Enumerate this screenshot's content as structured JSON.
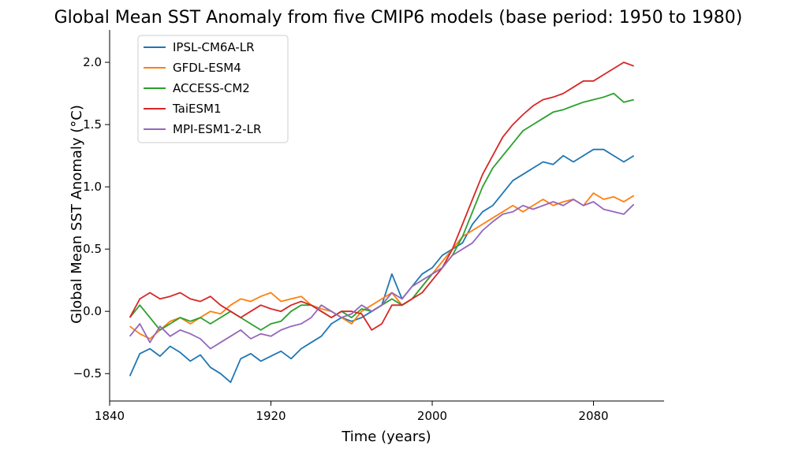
{
  "chart_data": {
    "type": "line",
    "title": "Global Mean SST Anomaly from five CMIP6 models (base period: 1950 to 1980)",
    "xlabel": "Time (years)",
    "ylabel": "Global Mean SST Anomaly (°C)",
    "xlim": [
      1840,
      2115
    ],
    "ylim": [
      -0.72,
      2.26
    ],
    "xticks": [
      1840,
      1920,
      2000,
      2080
    ],
    "xtick_labels": [
      "1840",
      "1920",
      "2000",
      "2080"
    ],
    "yticks": [
      -0.5,
      0.0,
      0.5,
      1.0,
      1.5,
      2.0
    ],
    "ytick_labels": [
      "−0.5",
      "0.0",
      "0.5",
      "1.0",
      "1.5",
      "2.0"
    ],
    "grid": false,
    "legend_position": "top-left",
    "series": [
      {
        "name": "IPSL-CM6A-LR",
        "color": "#1f77b4",
        "x": [
          1850,
          1855,
          1860,
          1865,
          1870,
          1875,
          1880,
          1885,
          1890,
          1895,
          1900,
          1905,
          1910,
          1915,
          1920,
          1925,
          1930,
          1935,
          1940,
          1945,
          1950,
          1955,
          1960,
          1965,
          1970,
          1975,
          1980,
          1985,
          1990,
          1995,
          2000,
          2005,
          2010,
          2015,
          2020,
          2025,
          2030,
          2035,
          2040,
          2045,
          2050,
          2055,
          2060,
          2065,
          2070,
          2075,
          2080,
          2085,
          2090,
          2095,
          2100
        ],
        "y": [
          -0.52,
          -0.34,
          -0.3,
          -0.36,
          -0.28,
          -0.33,
          -0.4,
          -0.35,
          -0.45,
          -0.5,
          -0.57,
          -0.38,
          -0.34,
          -0.4,
          -0.36,
          -0.32,
          -0.38,
          -0.3,
          -0.25,
          -0.2,
          -0.1,
          -0.05,
          -0.08,
          -0.05,
          0.0,
          0.05,
          0.3,
          0.1,
          0.2,
          0.3,
          0.35,
          0.45,
          0.5,
          0.55,
          0.7,
          0.8,
          0.85,
          0.95,
          1.05,
          1.1,
          1.15,
          1.2,
          1.18,
          1.25,
          1.2,
          1.25,
          1.3,
          1.3,
          1.25,
          1.2,
          1.25
        ]
      },
      {
        "name": "GFDL-ESM4",
        "color": "#ff7f0e",
        "x": [
          1850,
          1855,
          1860,
          1865,
          1870,
          1875,
          1880,
          1885,
          1890,
          1895,
          1900,
          1905,
          1910,
          1915,
          1920,
          1925,
          1930,
          1935,
          1940,
          1945,
          1950,
          1955,
          1960,
          1965,
          1970,
          1975,
          1980,
          1985,
          1990,
          1995,
          2000,
          2005,
          2010,
          2015,
          2020,
          2025,
          2030,
          2035,
          2040,
          2045,
          2050,
          2055,
          2060,
          2065,
          2070,
          2075,
          2080,
          2085,
          2090,
          2095,
          2100
        ],
        "y": [
          -0.12,
          -0.18,
          -0.22,
          -0.15,
          -0.08,
          -0.05,
          -0.1,
          -0.05,
          0.0,
          -0.02,
          0.05,
          0.1,
          0.08,
          0.12,
          0.15,
          0.08,
          0.1,
          0.12,
          0.05,
          0.02,
          0.0,
          -0.05,
          -0.1,
          0.0,
          0.05,
          0.1,
          0.15,
          0.05,
          0.1,
          0.2,
          0.3,
          0.4,
          0.5,
          0.6,
          0.65,
          0.7,
          0.75,
          0.8,
          0.85,
          0.8,
          0.85,
          0.9,
          0.85,
          0.88,
          0.9,
          0.85,
          0.95,
          0.9,
          0.92,
          0.88,
          0.93
        ]
      },
      {
        "name": "ACCESS-CM2",
        "color": "#2ca02c",
        "x": [
          1850,
          1855,
          1860,
          1865,
          1870,
          1875,
          1880,
          1885,
          1890,
          1895,
          1900,
          1905,
          1910,
          1915,
          1920,
          1925,
          1930,
          1935,
          1940,
          1945,
          1950,
          1955,
          1960,
          1965,
          1970,
          1975,
          1980,
          1985,
          1990,
          1995,
          2000,
          2005,
          2010,
          2015,
          2020,
          2025,
          2030,
          2035,
          2040,
          2045,
          2050,
          2055,
          2060,
          2065,
          2070,
          2075,
          2080,
          2085,
          2090,
          2095,
          2100
        ],
        "y": [
          -0.05,
          0.05,
          -0.05,
          -0.15,
          -0.1,
          -0.05,
          -0.08,
          -0.05,
          -0.1,
          -0.05,
          0.0,
          -0.05,
          -0.1,
          -0.15,
          -0.1,
          -0.08,
          0.0,
          0.05,
          0.05,
          0.0,
          -0.05,
          0.0,
          -0.05,
          0.02,
          0.0,
          0.05,
          0.1,
          0.05,
          0.1,
          0.2,
          0.3,
          0.35,
          0.45,
          0.6,
          0.8,
          1.0,
          1.15,
          1.25,
          1.35,
          1.45,
          1.5,
          1.55,
          1.6,
          1.62,
          1.65,
          1.68,
          1.7,
          1.72,
          1.75,
          1.68,
          1.7
        ]
      },
      {
        "name": "TaiESM1",
        "color": "#d62728",
        "x": [
          1850,
          1855,
          1860,
          1865,
          1870,
          1875,
          1880,
          1885,
          1890,
          1895,
          1900,
          1905,
          1910,
          1915,
          1920,
          1925,
          1930,
          1935,
          1940,
          1945,
          1950,
          1955,
          1960,
          1965,
          1970,
          1975,
          1980,
          1985,
          1990,
          1995,
          2000,
          2005,
          2010,
          2015,
          2020,
          2025,
          2030,
          2035,
          2040,
          2045,
          2050,
          2055,
          2060,
          2065,
          2070,
          2075,
          2080,
          2085,
          2090,
          2095,
          2100
        ],
        "y": [
          -0.05,
          0.1,
          0.15,
          0.1,
          0.12,
          0.15,
          0.1,
          0.08,
          0.12,
          0.05,
          0.0,
          -0.05,
          0.0,
          0.05,
          0.02,
          0.0,
          0.05,
          0.08,
          0.05,
          0.0,
          -0.05,
          0.0,
          0.0,
          -0.02,
          -0.15,
          -0.1,
          0.05,
          0.05,
          0.1,
          0.15,
          0.25,
          0.35,
          0.5,
          0.7,
          0.9,
          1.1,
          1.25,
          1.4,
          1.5,
          1.58,
          1.65,
          1.7,
          1.72,
          1.75,
          1.8,
          1.85,
          1.85,
          1.9,
          1.95,
          2.0,
          1.97
        ]
      },
      {
        "name": "MPI-ESM1-2-LR",
        "color": "#9467bd",
        "x": [
          1850,
          1855,
          1860,
          1865,
          1870,
          1875,
          1880,
          1885,
          1890,
          1895,
          1900,
          1905,
          1910,
          1915,
          1920,
          1925,
          1930,
          1935,
          1940,
          1945,
          1950,
          1955,
          1960,
          1965,
          1970,
          1975,
          1980,
          1985,
          1990,
          1995,
          2000,
          2005,
          2010,
          2015,
          2020,
          2025,
          2030,
          2035,
          2040,
          2045,
          2050,
          2055,
          2060,
          2065,
          2070,
          2075,
          2080,
          2085,
          2090,
          2095,
          2100
        ],
        "y": [
          -0.2,
          -0.1,
          -0.25,
          -0.12,
          -0.2,
          -0.15,
          -0.18,
          -0.22,
          -0.3,
          -0.25,
          -0.2,
          -0.15,
          -0.22,
          -0.18,
          -0.2,
          -0.15,
          -0.12,
          -0.1,
          -0.05,
          0.05,
          0.0,
          -0.05,
          -0.02,
          0.05,
          0.0,
          0.05,
          0.15,
          0.1,
          0.2,
          0.25,
          0.3,
          0.35,
          0.45,
          0.5,
          0.55,
          0.65,
          0.72,
          0.78,
          0.8,
          0.85,
          0.82,
          0.85,
          0.88,
          0.85,
          0.9,
          0.85,
          0.88,
          0.82,
          0.8,
          0.78,
          0.86
        ]
      }
    ]
  }
}
